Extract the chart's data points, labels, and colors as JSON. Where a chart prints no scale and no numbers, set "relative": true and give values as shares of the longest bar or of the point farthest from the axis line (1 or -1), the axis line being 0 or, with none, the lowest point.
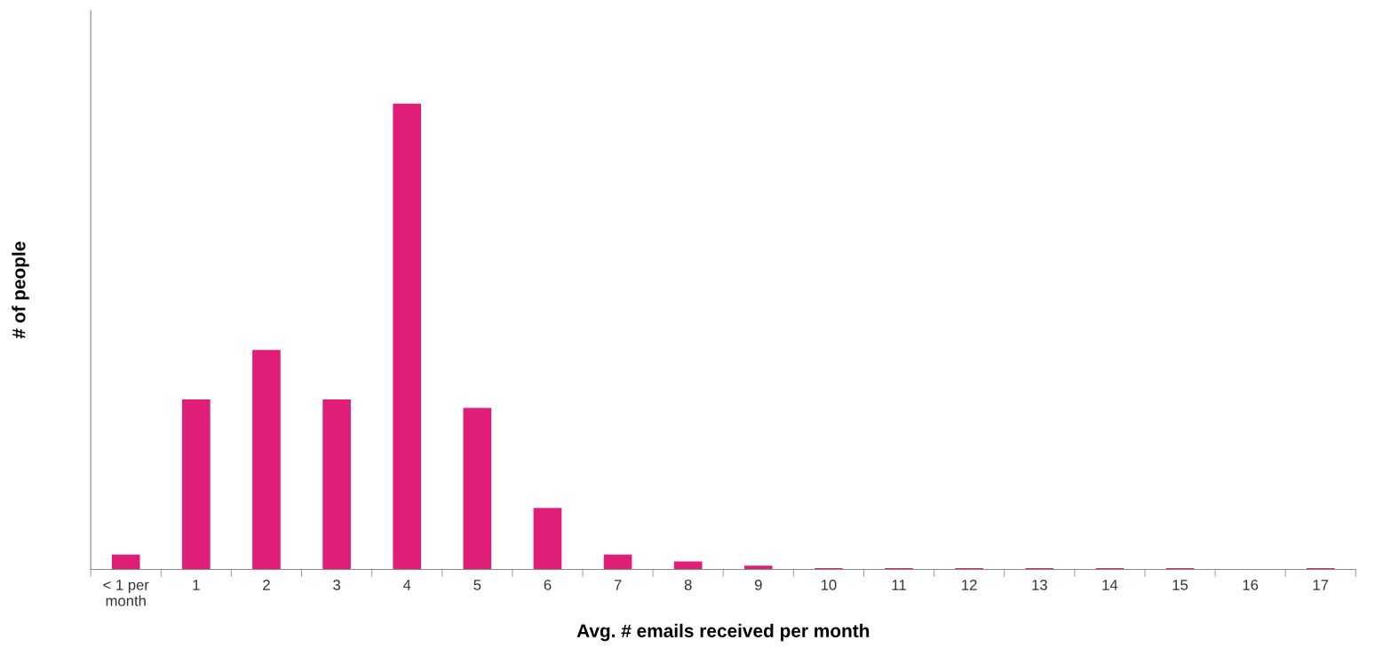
{
  "chart_data": {
    "type": "bar",
    "relative": true,
    "xlabel": "Avg. # emails received per month",
    "ylabel": "# of people",
    "categories": [
      "< 1 per\nmonth",
      "1",
      "2",
      "3",
      "4",
      "5",
      "6",
      "7",
      "8",
      "9",
      "10",
      "11",
      "12",
      "13",
      "14",
      "15",
      "16",
      "17"
    ],
    "values": [
      0.032,
      0.365,
      0.471,
      0.365,
      1,
      0.347,
      0.132,
      0.032,
      0.017,
      0.008,
      0.003,
      0.003,
      0.003,
      0.003,
      0.003,
      0.003,
      0,
      0.003
    ],
    "color": "#e01e78",
    "grid": false,
    "legend": false
  }
}
